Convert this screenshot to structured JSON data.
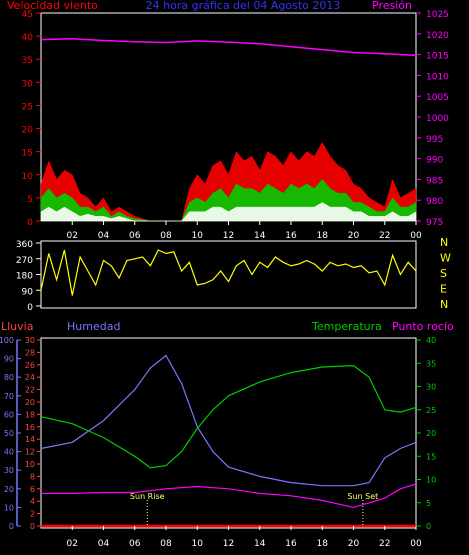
{
  "title": "24 hora gráfica del 04 Agosto 2013",
  "chart_data": [
    {
      "id": "wind",
      "type": "area",
      "title": "24 hora gráfica del 04 Agosto 2013",
      "left_axis_label": "Velocidad viento",
      "right_axis_label": "Presión",
      "x_ticks": [
        "02",
        "04",
        "06",
        "08",
        "10",
        "12",
        "14",
        "16",
        "18",
        "20",
        "22",
        "00"
      ],
      "ylim_left": [
        0,
        45
      ],
      "y_ticks_left": [
        0,
        5,
        10,
        15,
        20,
        25,
        30,
        35,
        40,
        45
      ],
      "ylim_right": [
        975,
        1025
      ],
      "y_ticks_right": [
        975,
        980,
        985,
        990,
        995,
        1000,
        1005,
        1010,
        1015,
        1020,
        1025
      ],
      "colors": {
        "gust": "#ff0000",
        "speed": "#00cc00",
        "avg": "#ffffff",
        "pressure": "#ff00ff",
        "axes": "#ff0000",
        "right_axis": "#ff00ff",
        "title": "#3333ff"
      },
      "series": [
        {
          "key": "gust",
          "points": [
            [
              0,
              8
            ],
            [
              0.5,
              13
            ],
            [
              1,
              9
            ],
            [
              1.5,
              11
            ],
            [
              2,
              10
            ],
            [
              2.5,
              6
            ],
            [
              3,
              5
            ],
            [
              3.5,
              3
            ],
            [
              4,
              5
            ],
            [
              4.5,
              2
            ],
            [
              5,
              3
            ],
            [
              5.5,
              2
            ],
            [
              6,
              1
            ],
            [
              7,
              0
            ],
            [
              8,
              0
            ],
            [
              9,
              0
            ],
            [
              9.5,
              7
            ],
            [
              10,
              10
            ],
            [
              10.5,
              8
            ],
            [
              11,
              12
            ],
            [
              11.5,
              13
            ],
            [
              12,
              10
            ],
            [
              12.5,
              15
            ],
            [
              13,
              13
            ],
            [
              13.5,
              14
            ],
            [
              14,
              11
            ],
            [
              14.5,
              15
            ],
            [
              15,
              14
            ],
            [
              15.5,
              12
            ],
            [
              16,
              15
            ],
            [
              16.5,
              13
            ],
            [
              17,
              15
            ],
            [
              17.5,
              14
            ],
            [
              18,
              17
            ],
            [
              18.5,
              14
            ],
            [
              19,
              12
            ],
            [
              19.5,
              11
            ],
            [
              20,
              8
            ],
            [
              20.5,
              7
            ],
            [
              21,
              5
            ],
            [
              21.5,
              4
            ],
            [
              22,
              3
            ],
            [
              22.5,
              9
            ],
            [
              23,
              5
            ],
            [
              23.5,
              6
            ],
            [
              24,
              7
            ]
          ]
        },
        {
          "key": "speed",
          "points": [
            [
              0,
              5
            ],
            [
              0.5,
              7
            ],
            [
              1,
              5
            ],
            [
              1.5,
              6
            ],
            [
              2,
              5
            ],
            [
              2.5,
              3
            ],
            [
              3,
              3
            ],
            [
              3.5,
              2
            ],
            [
              4,
              3
            ],
            [
              4.5,
              1
            ],
            [
              5,
              2
            ],
            [
              5.5,
              1
            ],
            [
              6,
              0.5
            ],
            [
              7,
              0
            ],
            [
              8,
              0
            ],
            [
              9,
              0
            ],
            [
              9.5,
              4
            ],
            [
              10,
              5
            ],
            [
              10.5,
              4
            ],
            [
              11,
              6
            ],
            [
              11.5,
              7
            ],
            [
              12,
              5
            ],
            [
              12.5,
              8
            ],
            [
              13,
              7
            ],
            [
              13.5,
              7
            ],
            [
              14,
              6
            ],
            [
              14.5,
              8
            ],
            [
              15,
              7
            ],
            [
              15.5,
              6
            ],
            [
              16,
              8
            ],
            [
              16.5,
              7
            ],
            [
              17,
              8
            ],
            [
              17.5,
              7
            ],
            [
              18,
              9
            ],
            [
              18.5,
              7
            ],
            [
              19,
              6
            ],
            [
              19.5,
              6
            ],
            [
              20,
              4
            ],
            [
              20.5,
              4
            ],
            [
              21,
              3
            ],
            [
              21.5,
              2
            ],
            [
              22,
              2
            ],
            [
              22.5,
              5
            ],
            [
              23,
              3
            ],
            [
              23.5,
              3
            ],
            [
              24,
              4
            ]
          ]
        },
        {
          "key": "avg",
          "points": [
            [
              0,
              2
            ],
            [
              0.5,
              3
            ],
            [
              1,
              2
            ],
            [
              1.5,
              3
            ],
            [
              2,
              2
            ],
            [
              2.5,
              1
            ],
            [
              3,
              1.5
            ],
            [
              3.5,
              1
            ],
            [
              4,
              1
            ],
            [
              4.5,
              0.5
            ],
            [
              5,
              1
            ],
            [
              5.5,
              0.5
            ],
            [
              6,
              0
            ],
            [
              7,
              0
            ],
            [
              8,
              0
            ],
            [
              9,
              0
            ],
            [
              9.5,
              2
            ],
            [
              10,
              2
            ],
            [
              10.5,
              2
            ],
            [
              11,
              3
            ],
            [
              11.5,
              3
            ],
            [
              12,
              2
            ],
            [
              12.5,
              3
            ],
            [
              13,
              3
            ],
            [
              13.5,
              3
            ],
            [
              14,
              3
            ],
            [
              14.5,
              3
            ],
            [
              15,
              3
            ],
            [
              15.5,
              3
            ],
            [
              16,
              3
            ],
            [
              16.5,
              3
            ],
            [
              17,
              3
            ],
            [
              17.5,
              3
            ],
            [
              18,
              4
            ],
            [
              18.5,
              3
            ],
            [
              19,
              3
            ],
            [
              19.5,
              3
            ],
            [
              20,
              2
            ],
            [
              20.5,
              2
            ],
            [
              21,
              1
            ],
            [
              21.5,
              1
            ],
            [
              22,
              1
            ],
            [
              22.5,
              2
            ],
            [
              23,
              1
            ],
            [
              23.5,
              1
            ],
            [
              24,
              2
            ]
          ]
        },
        {
          "key": "pressure",
          "points": [
            [
              0,
              1018.6
            ],
            [
              2,
              1018.8
            ],
            [
              4,
              1018.4
            ],
            [
              6,
              1018.1
            ],
            [
              8,
              1017.9
            ],
            [
              10,
              1018.3
            ],
            [
              12,
              1018.0
            ],
            [
              14,
              1017.6
            ],
            [
              16,
              1016.9
            ],
            [
              18,
              1016.2
            ],
            [
              20,
              1015.5
            ],
            [
              22,
              1015.2
            ],
            [
              24,
              1014.8
            ]
          ]
        }
      ]
    },
    {
      "id": "direction",
      "type": "line",
      "ylim": [
        0,
        360
      ],
      "y_ticks": [
        0,
        90,
        180,
        270,
        360
      ],
      "compass_labels": [
        "N",
        "W",
        "S",
        "E",
        "N"
      ],
      "color": "#ffff00",
      "points": [
        [
          0,
          90
        ],
        [
          0.5,
          300
        ],
        [
          1,
          150
        ],
        [
          1.5,
          320
        ],
        [
          2,
          60
        ],
        [
          2.5,
          280
        ],
        [
          3,
          200
        ],
        [
          3.5,
          120
        ],
        [
          4,
          260
        ],
        [
          4.5,
          230
        ],
        [
          5,
          160
        ],
        [
          5.5,
          260
        ],
        [
          6,
          270
        ],
        [
          6.5,
          280
        ],
        [
          7,
          230
        ],
        [
          7.5,
          320
        ],
        [
          8,
          300
        ],
        [
          8.5,
          310
        ],
        [
          9,
          200
        ],
        [
          9.5,
          250
        ],
        [
          10,
          120
        ],
        [
          10.5,
          130
        ],
        [
          11,
          150
        ],
        [
          11.5,
          200
        ],
        [
          12,
          140
        ],
        [
          12.5,
          230
        ],
        [
          13,
          260
        ],
        [
          13.5,
          180
        ],
        [
          14,
          250
        ],
        [
          14.5,
          220
        ],
        [
          15,
          280
        ],
        [
          15.5,
          250
        ],
        [
          16,
          230
        ],
        [
          16.5,
          240
        ],
        [
          17,
          260
        ],
        [
          17.5,
          240
        ],
        [
          18,
          200
        ],
        [
          18.5,
          250
        ],
        [
          19,
          230
        ],
        [
          19.5,
          240
        ],
        [
          20,
          220
        ],
        [
          20.5,
          230
        ],
        [
          21,
          190
        ],
        [
          21.5,
          200
        ],
        [
          22,
          120
        ],
        [
          22.5,
          290
        ],
        [
          23,
          180
        ],
        [
          23.5,
          250
        ],
        [
          24,
          200
        ]
      ]
    },
    {
      "id": "climate",
      "type": "line",
      "labels": {
        "rain": "Lluvia",
        "humidity": "Humedad",
        "temperature": "Temperatura",
        "dew": "Punto rocío",
        "sunrise": "Sun Rise",
        "sunset": "Sun Set"
      },
      "ylim_humidity": [
        0,
        100
      ],
      "y_ticks_humidity": [
        0,
        10,
        20,
        30,
        40,
        50,
        60,
        70,
        80,
        90,
        100
      ],
      "ylim_rain": [
        0,
        30
      ],
      "y_ticks_rain": [
        0,
        2,
        4,
        6,
        8,
        10,
        12,
        14,
        16,
        18,
        20,
        22,
        24,
        26,
        28,
        30
      ],
      "ylim_temp": [
        0,
        40
      ],
      "y_ticks_temp": [
        0,
        5,
        10,
        15,
        20,
        25,
        30,
        35,
        40
      ],
      "sunrise_hour": 6.8,
      "sunset_hour": 20.6,
      "colors": {
        "humidity": "#7777ff",
        "temperature": "#00cc00",
        "dew": "#ff00ff",
        "rain": "#ff0000",
        "rain_axis": "#ff4444",
        "temp_axis": "#00cc00",
        "sun": "#ffff66"
      },
      "humidity": [
        [
          0,
          12.5
        ],
        [
          2,
          13.5
        ],
        [
          4,
          17
        ],
        [
          6,
          22
        ],
        [
          7,
          25.5
        ],
        [
          8,
          27.5
        ],
        [
          9,
          23
        ],
        [
          10,
          16
        ],
        [
          11,
          12
        ],
        [
          12,
          9.5
        ],
        [
          14,
          8
        ],
        [
          16,
          7
        ],
        [
          18,
          6.5
        ],
        [
          20,
          6.5
        ],
        [
          21,
          7
        ],
        [
          22,
          11
        ],
        [
          23,
          12.5
        ],
        [
          24,
          13.5
        ]
      ],
      "temperature": [
        [
          0,
          23.5
        ],
        [
          2,
          22
        ],
        [
          4,
          19
        ],
        [
          6,
          15
        ],
        [
          7,
          12.5
        ],
        [
          8,
          13
        ],
        [
          9,
          16
        ],
        [
          10,
          21
        ],
        [
          11,
          25
        ],
        [
          12,
          28
        ],
        [
          14,
          31
        ],
        [
          16,
          33
        ],
        [
          18,
          34.2
        ],
        [
          20,
          34.5
        ],
        [
          21,
          32
        ],
        [
          22,
          25
        ],
        [
          23,
          24.5
        ],
        [
          24,
          25.5
        ]
      ],
      "dew": [
        [
          0,
          7
        ],
        [
          2,
          7
        ],
        [
          4,
          7.2
        ],
        [
          6,
          7.2
        ],
        [
          8,
          8
        ],
        [
          10,
          8.5
        ],
        [
          12,
          8
        ],
        [
          14,
          7
        ],
        [
          16,
          6.5
        ],
        [
          18,
          5.5
        ],
        [
          20,
          4
        ],
        [
          21,
          5
        ],
        [
          22,
          6
        ],
        [
          23,
          8
        ],
        [
          24,
          9
        ]
      ],
      "rain": [
        [
          0,
          0
        ],
        [
          24,
          0
        ]
      ]
    }
  ]
}
